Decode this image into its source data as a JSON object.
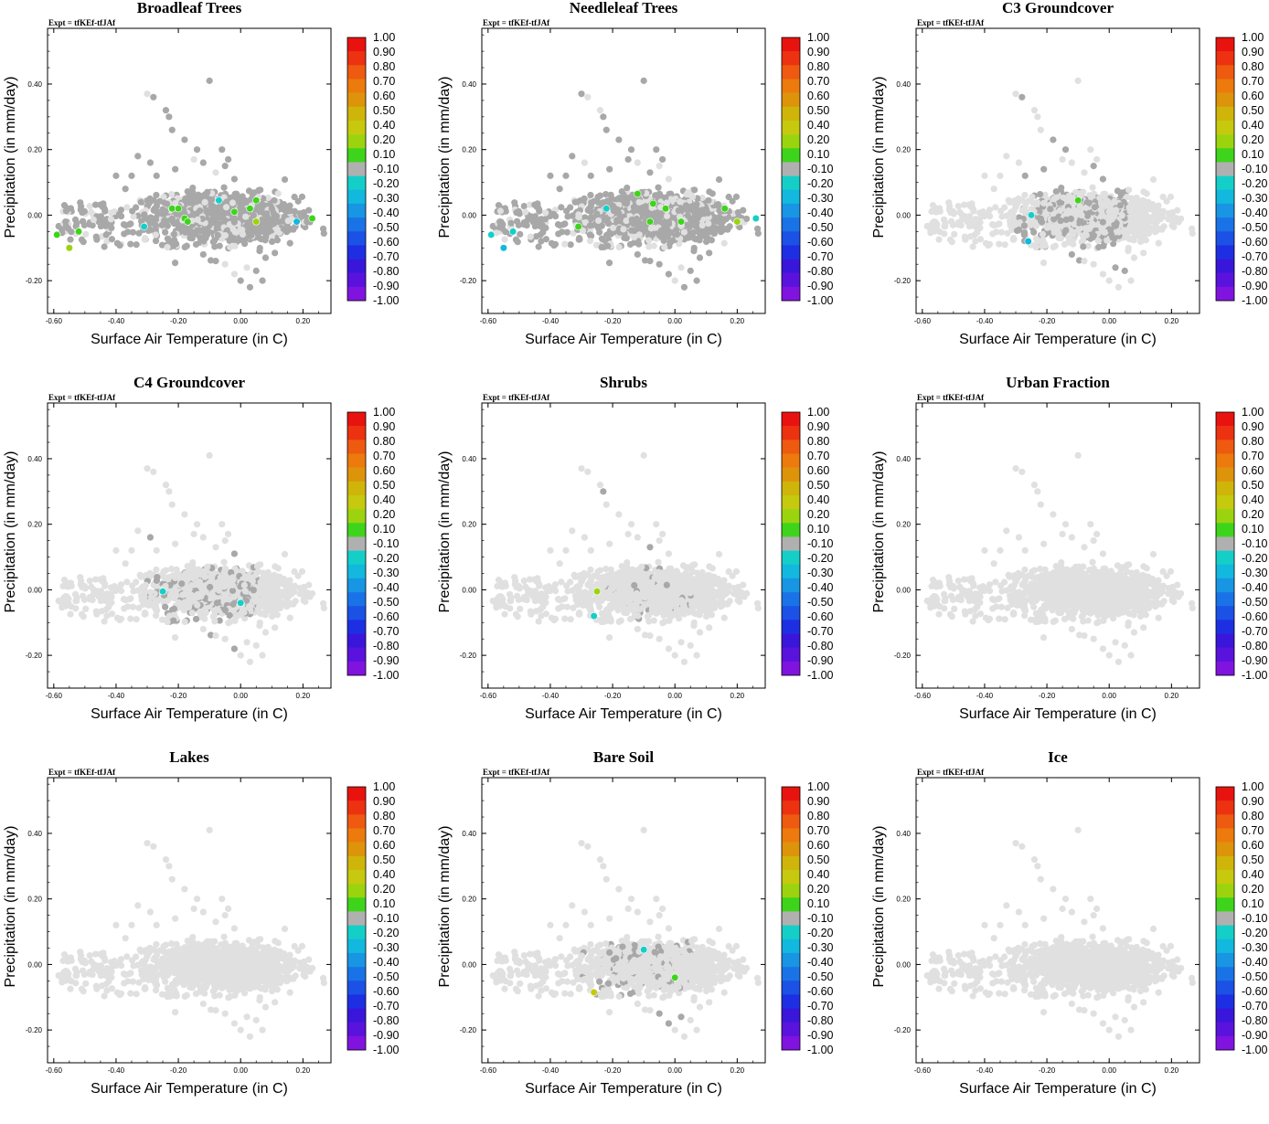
{
  "experiment_label": "Expt = tfKEf-tfJAf",
  "xlabel": "Surface Air Temperature (in C)",
  "ylabel": "Precipitation (in mm/day)",
  "colors": {
    "background_point": "#e0e0e0",
    "neutral_point": "#a8a8a8"
  },
  "colorbar": {
    "labels": [
      "1.00",
      "0.90",
      "0.80",
      "0.70",
      "0.60",
      "0.50",
      "0.40",
      "0.20",
      "0.10",
      "-0.10",
      "-0.20",
      "-0.30",
      "-0.40",
      "-0.50",
      "-0.60",
      "-0.70",
      "-0.80",
      "-0.90",
      "-1.00"
    ],
    "colors": [
      "#e8130f",
      "#ec3210",
      "#ee5a10",
      "#ec7a0c",
      "#dd930a",
      "#cfb50a",
      "#c6c90d",
      "#9bd40f",
      "#3ed41c",
      "#b0b0b0",
      "#14cfc8",
      "#12b8dd",
      "#1895e3",
      "#1a73e6",
      "#1c51e6",
      "#1e2fe3",
      "#3a16db",
      "#5a12dd",
      "#8113df"
    ]
  },
  "chart_data": [
    {
      "type": "scatter",
      "title": "Broadleaf Trees",
      "xlabel": "Surface Air Temperature (in C)",
      "ylabel": "Precipitation (in mm/day)",
      "xlim": [
        -0.62,
        0.29
      ],
      "ylim": [
        -0.3,
        0.57
      ],
      "xticks": [
        "-0.60",
        "-0.40",
        "-0.20",
        "0.00",
        "0.20"
      ],
      "yticks": [
        "0.40",
        "0.20",
        "0.00",
        "-0.20"
      ],
      "grey_spread": 1.0,
      "colored_points": [
        {
          "x": -0.59,
          "y": -0.06,
          "color": "#3ed41c"
        },
        {
          "x": -0.55,
          "y": -0.1,
          "color": "#9bd40f"
        },
        {
          "x": -0.52,
          "y": -0.05,
          "color": "#3ed41c"
        },
        {
          "x": -0.31,
          "y": -0.035,
          "color": "#14cfc8"
        },
        {
          "x": -0.22,
          "y": 0.02,
          "color": "#3ed41c"
        },
        {
          "x": -0.2,
          "y": 0.02,
          "color": "#3ed41c"
        },
        {
          "x": -0.18,
          "y": -0.01,
          "color": "#3ed41c"
        },
        {
          "x": -0.17,
          "y": -0.02,
          "color": "#3ed41c"
        },
        {
          "x": -0.07,
          "y": 0.045,
          "color": "#14cfc8"
        },
        {
          "x": -0.02,
          "y": 0.01,
          "color": "#3ed41c"
        },
        {
          "x": 0.03,
          "y": 0.02,
          "color": "#3ed41c"
        },
        {
          "x": 0.05,
          "y": 0.045,
          "color": "#3ed41c"
        },
        {
          "x": 0.05,
          "y": -0.02,
          "color": "#9bd40f"
        },
        {
          "x": 0.18,
          "y": -0.02,
          "color": "#12b8dd"
        },
        {
          "x": 0.23,
          "y": -0.01,
          "color": "#3ed41c"
        }
      ]
    },
    {
      "type": "scatter",
      "title": "Needleleaf Trees",
      "xlabel": "Surface Air Temperature (in C)",
      "ylabel": "Precipitation (in mm/day)",
      "xlim": [
        -0.62,
        0.29
      ],
      "ylim": [
        -0.3,
        0.57
      ],
      "xticks": [
        "-0.60",
        "-0.40",
        "-0.20",
        "0.00",
        "0.20"
      ],
      "yticks": [
        "0.40",
        "0.20",
        "0.00",
        "-0.20"
      ],
      "grey_spread": 1.0,
      "colored_points": [
        {
          "x": -0.59,
          "y": -0.06,
          "color": "#14cfc8"
        },
        {
          "x": -0.55,
          "y": -0.1,
          "color": "#12b8dd"
        },
        {
          "x": -0.52,
          "y": -0.05,
          "color": "#14cfc8"
        },
        {
          "x": -0.31,
          "y": -0.035,
          "color": "#3ed41c"
        },
        {
          "x": -0.22,
          "y": 0.02,
          "color": "#14cfc8"
        },
        {
          "x": -0.12,
          "y": 0.065,
          "color": "#3ed41c"
        },
        {
          "x": -0.08,
          "y": -0.02,
          "color": "#3ed41c"
        },
        {
          "x": -0.07,
          "y": 0.035,
          "color": "#3ed41c"
        },
        {
          "x": -0.03,
          "y": 0.02,
          "color": "#3ed41c"
        },
        {
          "x": 0.02,
          "y": -0.02,
          "color": "#3ed41c"
        },
        {
          "x": 0.16,
          "y": 0.02,
          "color": "#3ed41c"
        },
        {
          "x": 0.2,
          "y": -0.02,
          "color": "#9bd40f"
        },
        {
          "x": 0.26,
          "y": -0.01,
          "color": "#14cfc8"
        }
      ]
    },
    {
      "type": "scatter",
      "title": "C3 Groundcover",
      "xlabel": "Surface Air Temperature (in C)",
      "ylabel": "Precipitation (in mm/day)",
      "xlim": [
        -0.62,
        0.29
      ],
      "ylim": [
        -0.3,
        0.57
      ],
      "xticks": [
        "-0.60",
        "-0.40",
        "-0.20",
        "0.00",
        "0.20"
      ],
      "yticks": [
        "0.40",
        "0.20",
        "0.00",
        "-0.20"
      ],
      "grey_spread": 0.32,
      "colored_points": [
        {
          "x": -0.1,
          "y": 0.045,
          "color": "#3ed41c"
        },
        {
          "x": -0.25,
          "y": 0.0,
          "color": "#14cfc8"
        },
        {
          "x": -0.26,
          "y": -0.08,
          "color": "#12b8dd"
        }
      ]
    },
    {
      "type": "scatter",
      "title": "C4 Groundcover",
      "xlabel": "Surface Air Temperature (in C)",
      "ylabel": "Precipitation (in mm/day)",
      "xlim": [
        -0.62,
        0.29
      ],
      "ylim": [
        -0.3,
        0.57
      ],
      "xticks": [
        "-0.60",
        "-0.40",
        "-0.20",
        "0.00",
        "0.20"
      ],
      "yticks": [
        "0.40",
        "0.20",
        "0.00",
        "-0.20"
      ],
      "grey_spread": 0.28,
      "colored_points": [
        {
          "x": -0.25,
          "y": -0.005,
          "color": "#14cfc8"
        },
        {
          "x": 0.0,
          "y": -0.04,
          "color": "#14cfc8"
        }
      ]
    },
    {
      "type": "scatter",
      "title": "Shrubs",
      "xlabel": "Surface Air Temperature (in C)",
      "ylabel": "Precipitation (in mm/day)",
      "xlim": [
        -0.62,
        0.29
      ],
      "ylim": [
        -0.3,
        0.57
      ],
      "xticks": [
        "-0.60",
        "-0.40",
        "-0.20",
        "0.00",
        "0.20"
      ],
      "yticks": [
        "0.40",
        "0.20",
        "0.00",
        "-0.20"
      ],
      "grey_spread": 0.06,
      "colored_points": [
        {
          "x": -0.25,
          "y": -0.005,
          "color": "#9bd40f"
        },
        {
          "x": -0.26,
          "y": -0.08,
          "color": "#14cfc8"
        }
      ]
    },
    {
      "type": "scatter",
      "title": "Urban Fraction",
      "xlabel": "Surface Air Temperature (in C)",
      "ylabel": "Precipitation (in mm/day)",
      "xlim": [
        -0.62,
        0.29
      ],
      "ylim": [
        -0.3,
        0.57
      ],
      "xticks": [
        "-0.60",
        "-0.40",
        "-0.20",
        "0.00",
        "0.20"
      ],
      "yticks": [
        "0.40",
        "0.20",
        "0.00",
        "-0.20"
      ],
      "grey_spread": 0.0,
      "colored_points": []
    },
    {
      "type": "scatter",
      "title": "Lakes",
      "xlabel": "Surface Air Temperature (in C)",
      "ylabel": "Precipitation (in mm/day)",
      "xlim": [
        -0.62,
        0.29
      ],
      "ylim": [
        -0.3,
        0.57
      ],
      "xticks": [
        "-0.60",
        "-0.40",
        "-0.20",
        "0.00",
        "0.20"
      ],
      "yticks": [
        "0.40",
        "0.20",
        "0.00",
        "-0.20"
      ],
      "grey_spread": 0.0,
      "colored_points": []
    },
    {
      "type": "scatter",
      "title": "Bare Soil",
      "xlabel": "Surface Air Temperature (in C)",
      "ylabel": "Precipitation (in mm/day)",
      "xlim": [
        -0.62,
        0.29
      ],
      "ylim": [
        -0.3,
        0.57
      ],
      "xticks": [
        "-0.60",
        "-0.40",
        "-0.20",
        "0.00",
        "0.20"
      ],
      "yticks": [
        "0.40",
        "0.20",
        "0.00",
        "-0.20"
      ],
      "grey_spread": 0.14,
      "colored_points": [
        {
          "x": -0.1,
          "y": 0.045,
          "color": "#14cfc8"
        },
        {
          "x": 0.0,
          "y": -0.04,
          "color": "#3ed41c"
        },
        {
          "x": -0.26,
          "y": -0.085,
          "color": "#c6c90d"
        }
      ]
    },
    {
      "type": "scatter",
      "title": "Ice",
      "xlabel": "Surface Air Temperature (in C)",
      "ylabel": "Precipitation (in mm/day)",
      "xlim": [
        -0.62,
        0.29
      ],
      "ylim": [
        -0.3,
        0.57
      ],
      "xticks": [
        "-0.60",
        "-0.40",
        "-0.20",
        "0.00",
        "0.20"
      ],
      "yticks": [
        "0.40",
        "0.20",
        "0.00",
        "-0.20"
      ],
      "grey_spread": 0.0,
      "colored_points": []
    }
  ]
}
